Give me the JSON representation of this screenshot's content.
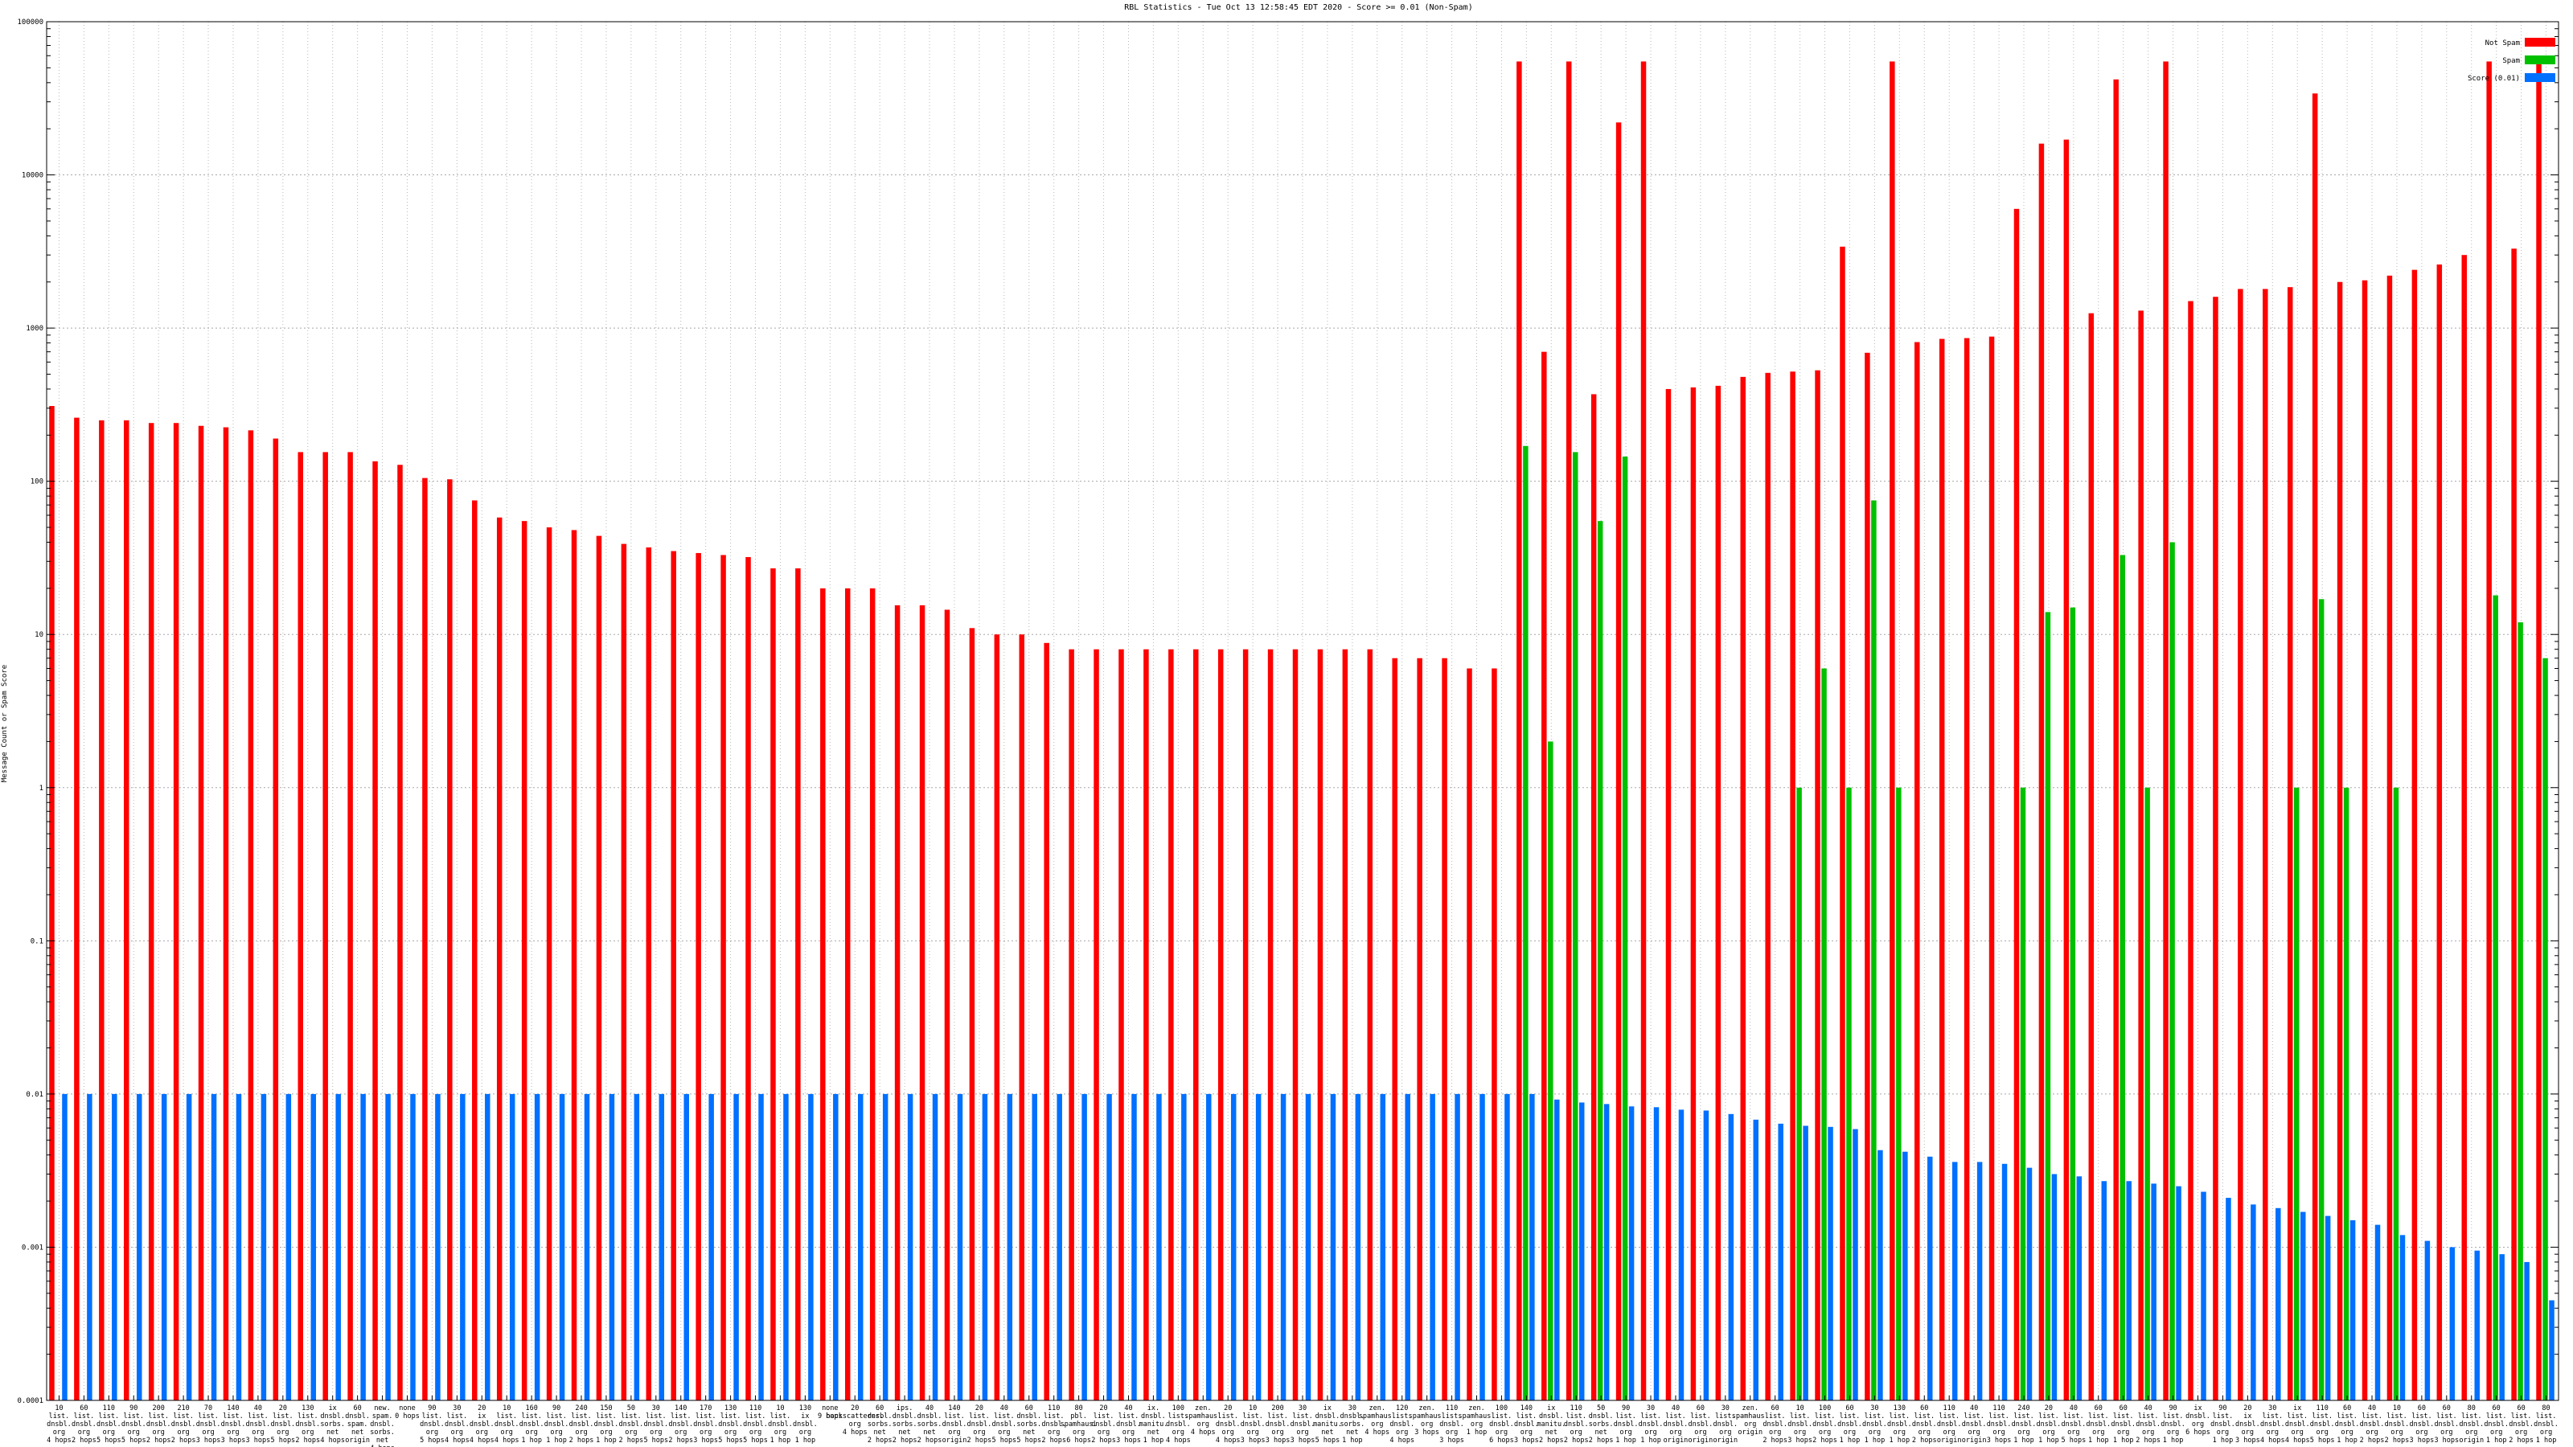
{
  "chart_data": {
    "type": "bar",
    "title": "RBL Statistics - Tue Oct 13 12:58:45 EDT 2020 - Score >= 0.01 (Non-Spam)",
    "xlabel": "",
    "ylabel": "Message Count or Spam Score",
    "y_scale": "log",
    "ylim": [
      0.0001,
      100000
    ],
    "grid": true,
    "legend_position": "top-right",
    "y_tick_labels": [
      "0.0001",
      "0.001",
      "0.01",
      "0.1",
      "1",
      "10",
      "100",
      "1000",
      "10000",
      "100000"
    ],
    "categories": [
      [
        "10",
        "list.",
        "dnsbl.",
        "org",
        "4 hops"
      ],
      [
        "60",
        "list.",
        "dnsbl.",
        "org",
        "2 hops"
      ],
      [
        "110",
        "list.",
        "dnsbl.",
        "org",
        "5 hops"
      ],
      [
        "90",
        "list.",
        "dnsbl.",
        "org",
        "5 hops"
      ],
      [
        "200",
        "list.",
        "dnsbl.",
        "org",
        "2 hops"
      ],
      [
        "210",
        "list.",
        "dnsbl.",
        "org",
        "2 hops"
      ],
      [
        "70",
        "list.",
        "dnsbl.",
        "org",
        "3 hops"
      ],
      [
        "140",
        "list.",
        "dnsbl.",
        "org",
        "3 hops"
      ],
      [
        "40",
        "list.",
        "dnsbl.",
        "org",
        "3 hops"
      ],
      [
        "20",
        "list.",
        "dnsbl.",
        "org",
        "5 hops"
      ],
      [
        "130",
        "list.",
        "dnsbl.",
        "org",
        "2 hops"
      ],
      [
        "ix",
        "dnsbl.",
        "sorbs.",
        "net",
        "4 hops"
      ],
      [
        "60",
        "dnsbl.",
        "spam.",
        "net",
        "origin"
      ],
      [
        "new.",
        "spam.",
        "dnsbl.",
        "sorbs.",
        "net",
        "4 hops"
      ],
      [
        "none",
        "0 hops"
      ],
      [
        "90",
        "list.",
        "dnsbl.",
        "org",
        "5 hops"
      ],
      [
        "30",
        "list.",
        "dnsbl.",
        "org",
        "4 hops"
      ],
      [
        "20",
        "ix",
        "dnsbl.",
        "org",
        "4 hops"
      ],
      [
        "10",
        "list.",
        "dnsbl.",
        "org",
        "4 hops"
      ],
      [
        "160",
        "list.",
        "dnsbl.",
        "org",
        "1 hop"
      ],
      [
        "90",
        "list.",
        "dnsbl.",
        "org",
        "1 hop"
      ],
      [
        "240",
        "list.",
        "dnsbl.",
        "org",
        "2 hops"
      ],
      [
        "150",
        "list.",
        "dnsbl.",
        "org",
        "1 hop"
      ],
      [
        "50",
        "list.",
        "dnsbl.",
        "org",
        "2 hops"
      ],
      [
        "30",
        "list.",
        "dnsbl.",
        "org",
        "5 hops"
      ],
      [
        "140",
        "list.",
        "dnsbl.",
        "org",
        "2 hops"
      ],
      [
        "170",
        "list.",
        "dnsbl.",
        "org",
        "3 hops"
      ],
      [
        "130",
        "list.",
        "dnsbl.",
        "org",
        "5 hops"
      ],
      [
        "110",
        "list.",
        "dnsbl.",
        "org",
        "5 hops"
      ],
      [
        "10",
        "list.",
        "dnsbl.",
        "org",
        "1 hop"
      ],
      [
        "130",
        "ix",
        "dnsbl.",
        "org",
        "1 hop"
      ],
      [
        "none",
        "9 hops"
      ],
      [
        "20",
        "backscatterer.",
        "org",
        "4 hops"
      ],
      [
        "60",
        "dnsbl.",
        "sorbs.",
        "net",
        "2 hops"
      ],
      [
        "ips.",
        "dnsbl.",
        "sorbs.",
        "net",
        "2 hops"
      ],
      [
        "40",
        "dnsbl.",
        "sorbs.",
        "net",
        "2 hops"
      ],
      [
        "140",
        "list.",
        "dnsbl.",
        "org",
        "origin"
      ],
      [
        "20",
        "list.",
        "dnsbl.",
        "org",
        "2 hops"
      ],
      [
        "40",
        "list.",
        "dnsbl.",
        "org",
        "5 hops"
      ],
      [
        "60",
        "dnsbl.",
        "sorbs.",
        "net",
        "5 hops"
      ],
      [
        "110",
        "list.",
        "dnsbl.",
        "org",
        "2 hops"
      ],
      [
        "80",
        "pbl.",
        "spamhaus.",
        "org",
        "6 hops"
      ],
      [
        "20",
        "list.",
        "dnsbl.",
        "org",
        "2 hops"
      ],
      [
        "40",
        "list.",
        "dnsbl.",
        "org",
        "3 hops"
      ],
      [
        "ix.",
        "dnsbl.",
        "manitu.",
        "net",
        "1 hop"
      ],
      [
        "100",
        "list.",
        "dnsbl.",
        "org",
        "4 hops"
      ],
      [
        "zen.",
        "spamhaus.",
        "org",
        "4 hops"
      ],
      [
        "20",
        "list.",
        "dnsbl.",
        "org",
        "4 hops"
      ],
      [
        "10",
        "list.",
        "dnsbl.",
        "org",
        "3 hops"
      ],
      [
        "200",
        "list.",
        "dnsbl.",
        "org",
        "3 hops"
      ],
      [
        "30",
        "list.",
        "dnsbl.",
        "org",
        "3 hops"
      ],
      [
        "ix",
        "dnsbl.",
        "manitu.",
        "net",
        "5 hops"
      ],
      [
        "30",
        "dnsbl.",
        "sorbs.",
        "net",
        "1 hop"
      ],
      [
        "zen.",
        "spamhaus.",
        "org",
        "4 hops"
      ],
      [
        "120",
        "list.",
        "dnsbl.",
        "org",
        "4 hops"
      ],
      [
        "zen.",
        "spamhaus.",
        "org",
        "3 hops"
      ],
      [
        "110",
        "list.",
        "dnsbl.",
        "org",
        "3 hops"
      ],
      [
        "zen.",
        "spamhaus.",
        "org",
        "1 hop"
      ],
      [
        "100",
        "list.",
        "dnsbl.",
        "org",
        "6 hops"
      ],
      [
        "140",
        "list.",
        "dnsbl.",
        "org",
        "3 hops"
      ],
      [
        "ix",
        "dnsbl.",
        "manitu.",
        "net",
        "2 hops"
      ],
      [
        "110",
        "list.",
        "dnsbl.",
        "org",
        "2 hops"
      ],
      [
        "50",
        "dnsbl.",
        "sorbs.",
        "net",
        "2 hops"
      ],
      [
        "90",
        "list.",
        "dnsbl.",
        "org",
        "1 hop"
      ],
      [
        "30",
        "list.",
        "dnsbl.",
        "org",
        "1 hop"
      ],
      [
        "40",
        "list.",
        "dnsbl.",
        "org",
        "origin"
      ],
      [
        "60",
        "list.",
        "dnsbl.",
        "org",
        "origin"
      ],
      [
        "30",
        "list.",
        "dnsbl.",
        "org",
        "origin"
      ],
      [
        "zen.",
        "spamhaus.",
        "org",
        "origin"
      ],
      [
        "60",
        "list.",
        "dnsbl.",
        "org",
        "2 hops"
      ],
      [
        "10",
        "list.",
        "dnsbl.",
        "org",
        "3 hops"
      ],
      [
        "100",
        "list.",
        "dnsbl.",
        "org",
        "2 hops"
      ],
      [
        "60",
        "list.",
        "dnsbl.",
        "org",
        "1 hop"
      ],
      [
        "30",
        "list.",
        "dnsbl.",
        "org",
        "1 hop"
      ],
      [
        "130",
        "list.",
        "dnsbl.",
        "org",
        "1 hop"
      ],
      [
        "60",
        "list.",
        "dnsbl.",
        "org",
        "2 hops"
      ],
      [
        "110",
        "list.",
        "dnsbl.",
        "org",
        "origin"
      ],
      [
        "40",
        "list.",
        "dnsbl.",
        "org",
        "origin"
      ],
      [
        "110",
        "list.",
        "dnsbl.",
        "org",
        "3 hops"
      ],
      [
        "240",
        "list.",
        "dnsbl.",
        "org",
        "1 hop"
      ],
      [
        "20",
        "list.",
        "dnsbl.",
        "org",
        "1 hop"
      ],
      [
        "40",
        "list.",
        "dnsbl.",
        "org",
        "5 hops"
      ],
      [
        "60",
        "list.",
        "dnsbl.",
        "org",
        "1 hop"
      ],
      [
        "60",
        "list.",
        "dnsbl.",
        "org",
        "1 hop"
      ],
      [
        "40",
        "list.",
        "dnsbl.",
        "org",
        "2 hops"
      ],
      [
        "90",
        "list.",
        "dnsbl.",
        "org",
        "1 hop"
      ],
      [
        "ix",
        "dnsbl.",
        "org",
        "6 hops"
      ],
      [
        "90",
        "list.",
        "dnsbl.",
        "org",
        "1 hop"
      ],
      [
        "20",
        "ix",
        "dnsbl.",
        "org",
        "3 hops"
      ],
      [
        "30",
        "list.",
        "dnsbl.",
        "org",
        "4 hops"
      ],
      [
        "ix",
        "list.",
        "dnsbl.",
        "org",
        "4 hops"
      ],
      [
        "110",
        "list.",
        "dnsbl.",
        "org",
        "5 hops"
      ],
      [
        "60",
        "list.",
        "dnsbl.",
        "org",
        "1 hop"
      ],
      [
        "40",
        "list.",
        "dnsbl.",
        "org",
        "2 hops"
      ],
      [
        "10",
        "list.",
        "dnsbl.",
        "org",
        "2 hops"
      ],
      [
        "60",
        "list.",
        "dnsbl.",
        "org",
        "3 hops"
      ],
      [
        "60",
        "list.",
        "dnsbl.",
        "org",
        "3 hops"
      ],
      [
        "80",
        "list.",
        "dnsbl.",
        "org",
        "origin"
      ],
      [
        "60",
        "list.",
        "dnsbl.",
        "org",
        "1 hop"
      ],
      [
        "60",
        "list.",
        "dnsbl.",
        "org",
        "2 hops"
      ],
      [
        "80",
        "list.",
        "dnsbl.",
        "org",
        "1 hop"
      ]
    ],
    "series": [
      {
        "name": "Not Spam",
        "color": "#ff0000",
        "values": [
          310,
          260,
          250,
          250,
          240,
          240,
          230,
          225,
          215,
          190,
          155,
          155,
          155,
          135,
          128,
          105,
          103,
          75,
          58,
          55,
          50,
          48,
          44,
          39,
          37,
          35,
          34,
          33,
          32,
          27,
          27,
          20,
          20,
          20,
          15.5,
          15.5,
          14.5,
          11,
          10,
          10,
          8.8,
          8,
          8,
          8,
          8,
          8,
          8,
          8,
          8,
          8,
          8,
          8,
          8,
          8,
          7,
          7,
          7,
          6,
          6,
          55000,
          700,
          55000,
          370,
          22000,
          55000,
          400,
          410,
          420,
          480,
          510,
          520,
          530,
          3400,
          690,
          55000,
          810,
          850,
          860,
          880,
          6000,
          16000,
          17000,
          1250,
          42000,
          1300,
          55000,
          1500,
          1600,
          1800,
          1800,
          1850,
          34000,
          2000,
          2050,
          2200,
          2400,
          2600,
          3000,
          55000,
          3300,
          55000
        ]
      },
      {
        "name": "Spam",
        "color": "#00c000",
        "values": [
          null,
          null,
          null,
          null,
          null,
          null,
          null,
          null,
          null,
          null,
          null,
          null,
          null,
          null,
          null,
          null,
          null,
          null,
          null,
          null,
          null,
          null,
          null,
          null,
          null,
          null,
          null,
          null,
          null,
          null,
          null,
          null,
          null,
          null,
          null,
          null,
          null,
          null,
          null,
          null,
          null,
          null,
          null,
          null,
          null,
          null,
          null,
          null,
          null,
          null,
          null,
          null,
          null,
          null,
          null,
          null,
          null,
          null,
          null,
          170,
          2,
          155,
          55,
          145,
          null,
          null,
          null,
          null,
          null,
          null,
          1,
          6,
          1,
          75,
          1,
          null,
          null,
          null,
          null,
          1,
          14,
          15,
          null,
          33,
          1,
          40,
          null,
          null,
          null,
          null,
          1,
          17,
          1,
          null,
          1,
          null,
          null,
          null,
          18,
          12,
          7
        ]
      },
      {
        "name": "Score (0.01)",
        "color": "#0070ff",
        "values": [
          0.01,
          0.01,
          0.01,
          0.01,
          0.01,
          0.01,
          0.01,
          0.01,
          0.01,
          0.01,
          0.01,
          0.01,
          0.01,
          0.01,
          0.01,
          0.01,
          0.01,
          0.01,
          0.01,
          0.01,
          0.01,
          0.01,
          0.01,
          0.01,
          0.01,
          0.01,
          0.01,
          0.01,
          0.01,
          0.01,
          0.01,
          0.01,
          0.01,
          0.01,
          0.01,
          0.01,
          0.01,
          0.01,
          0.01,
          0.01,
          0.01,
          0.01,
          0.01,
          0.01,
          0.01,
          0.01,
          0.01,
          0.01,
          0.01,
          0.01,
          0.01,
          0.01,
          0.01,
          0.01,
          0.01,
          0.01,
          0.01,
          0.01,
          0.01,
          0.01,
          0.0092,
          0.0088,
          0.0086,
          0.0083,
          0.0082,
          0.0079,
          0.0078,
          0.0074,
          0.0068,
          0.0064,
          0.0062,
          0.0061,
          0.0059,
          0.0043,
          0.0042,
          0.0039,
          0.0036,
          0.0036,
          0.0035,
          0.0033,
          0.003,
          0.0029,
          0.0027,
          0.0027,
          0.0026,
          0.0025,
          0.0023,
          0.0021,
          0.0019,
          0.0018,
          0.0017,
          0.0016,
          0.0015,
          0.0014,
          0.0012,
          0.0011,
          0.001,
          0.00095,
          0.0009,
          0.0008,
          0.00045
        ]
      }
    ]
  }
}
